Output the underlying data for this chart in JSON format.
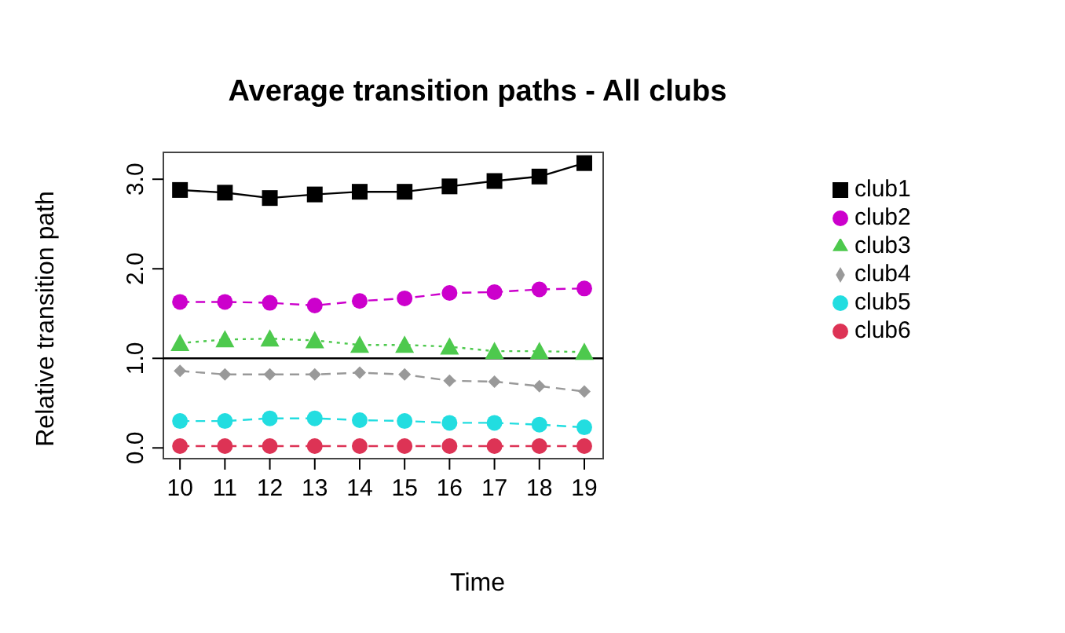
{
  "chart_data": {
    "type": "line",
    "title": "Average transition paths - All clubs",
    "xlabel": "Time",
    "ylabel": "Relative transition path",
    "x": [
      10,
      11,
      12,
      13,
      14,
      15,
      16,
      17,
      18,
      19
    ],
    "xlim": [
      9.63,
      19.42
    ],
    "xticks": [
      10,
      11,
      12,
      13,
      14,
      15,
      16,
      17,
      18,
      19
    ],
    "ylim": [
      -0.12,
      3.3
    ],
    "yticks": [
      {
        "value": 0,
        "label": "0.0"
      },
      {
        "value": 1,
        "label": "1.0"
      },
      {
        "value": 2,
        "label": "2.0"
      },
      {
        "value": 3,
        "label": "3.0"
      }
    ],
    "grid": false,
    "legend": "right",
    "ref_lines": [
      {
        "axis": "y",
        "value": 1,
        "color": "#000000"
      }
    ],
    "series": [
      {
        "name": "club1",
        "color": "#000000",
        "marker": "square",
        "line_style": "solid",
        "values": [
          2.88,
          2.85,
          2.79,
          2.83,
          2.86,
          2.86,
          2.92,
          2.98,
          3.03,
          3.18
        ]
      },
      {
        "name": "club2",
        "color": "#cc00cc",
        "marker": "circle",
        "line_style": "dashed",
        "values": [
          1.63,
          1.63,
          1.62,
          1.59,
          1.64,
          1.67,
          1.73,
          1.74,
          1.77,
          1.78
        ]
      },
      {
        "name": "club3",
        "color": "#4dc94d",
        "marker": "triangle",
        "line_style": "dotted",
        "values": [
          1.17,
          1.21,
          1.22,
          1.2,
          1.15,
          1.15,
          1.13,
          1.08,
          1.08,
          1.07
        ]
      },
      {
        "name": "club4",
        "color": "#999999",
        "marker": "diamond",
        "line_style": "dashed",
        "values": [
          0.86,
          0.82,
          0.82,
          0.82,
          0.84,
          0.82,
          0.75,
          0.74,
          0.69,
          0.63
        ]
      },
      {
        "name": "club5",
        "color": "#22dde0",
        "marker": "circle",
        "line_style": "dashed",
        "values": [
          0.3,
          0.3,
          0.33,
          0.33,
          0.31,
          0.3,
          0.28,
          0.28,
          0.26,
          0.23
        ]
      },
      {
        "name": "club6",
        "color": "#dd3355",
        "marker": "circle",
        "line_style": "dashed",
        "values": [
          0.02,
          0.02,
          0.02,
          0.02,
          0.02,
          0.02,
          0.02,
          0.02,
          0.02,
          0.02
        ]
      }
    ]
  }
}
